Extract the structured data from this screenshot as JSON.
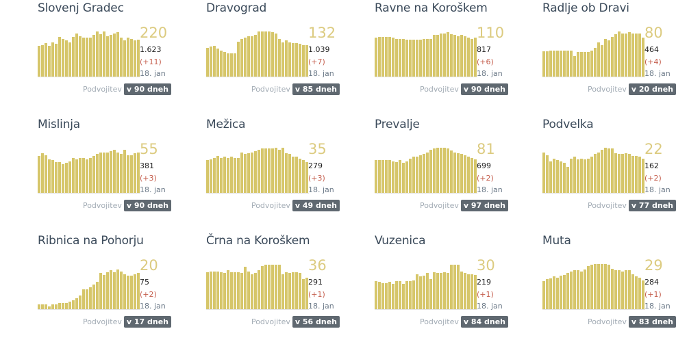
{
  "footer_label": "Podvojitev",
  "colors": {
    "bar": "#d6c66a",
    "badge": "#5f6870",
    "delta": "#c5604f"
  },
  "municipalities": [
    {
      "name": "Slovenj Gradec",
      "active": "220",
      "total": "1.623",
      "delta": "(+11)",
      "date": "18. jan",
      "doubling": "v 90 dneh",
      "bars": [
        0.68,
        0.7,
        0.74,
        0.68,
        0.76,
        0.72,
        0.88,
        0.84,
        0.8,
        0.76,
        0.88,
        0.96,
        0.9,
        0.86,
        0.86,
        0.86,
        0.92,
        1,
        0.94,
        1,
        0.9,
        0.92,
        0.96,
        0.99,
        0.86,
        0.8,
        0.86,
        0.84,
        0.8,
        0.82
      ]
    },
    {
      "name": "Dravograd",
      "active": "132",
      "total": "1.039",
      "delta": "(+7)",
      "date": "18. jan",
      "doubling": "v 85 dneh",
      "bars": [
        0.64,
        0.66,
        0.68,
        0.62,
        0.58,
        0.54,
        0.52,
        0.52,
        0.52,
        0.78,
        0.84,
        0.86,
        0.9,
        0.9,
        0.92,
        1,
        1,
        1,
        1,
        0.98,
        0.96,
        0.84,
        0.76,
        0.8,
        0.76,
        0.74,
        0.74,
        0.72,
        0.7,
        0.7
      ]
    },
    {
      "name": "Ravne na Koroškem",
      "active": "110",
      "total": "817",
      "delta": "(+6)",
      "date": "18. jan",
      "doubling": "v 90 dneh",
      "bars": [
        0.86,
        0.88,
        0.88,
        0.88,
        0.88,
        0.86,
        0.84,
        0.84,
        0.84,
        0.82,
        0.82,
        0.82,
        0.82,
        0.82,
        0.84,
        0.84,
        0.84,
        0.92,
        0.92,
        0.96,
        0.96,
        0.98,
        0.94,
        0.92,
        0.9,
        0.92,
        0.9,
        0.86,
        0.84,
        0.86
      ]
    },
    {
      "name": "Radlje ob Dravi",
      "active": "80",
      "total": "464",
      "delta": "(+4)",
      "date": "18. jan",
      "doubling": "v 20 dneh",
      "bars": [
        0.56,
        0.56,
        0.58,
        0.58,
        0.58,
        0.58,
        0.58,
        0.58,
        0.58,
        0.46,
        0.54,
        0.54,
        0.54,
        0.54,
        0.58,
        0.64,
        0.76,
        0.7,
        0.84,
        0.8,
        0.88,
        0.94,
        1,
        0.96,
        0.96,
        0.98,
        0.96,
        0.96,
        0.96,
        0.86
      ]
    },
    {
      "name": "Mislinja",
      "active": "55",
      "total": "381",
      "delta": "(+3)",
      "date": "18. jan",
      "doubling": "v 90 dneh",
      "bars": [
        0.82,
        0.88,
        0.84,
        0.74,
        0.72,
        0.68,
        0.68,
        0.64,
        0.66,
        0.7,
        0.78,
        0.74,
        0.78,
        0.78,
        0.74,
        0.78,
        0.82,
        0.86,
        0.9,
        0.9,
        0.9,
        0.92,
        0.96,
        0.9,
        0.86,
        0.96,
        0.84,
        0.84,
        0.88,
        0.9
      ]
    },
    {
      "name": "Mežica",
      "active": "35",
      "total": "279",
      "delta": "(+3)",
      "date": "18. jan",
      "doubling": "v 49 dneh",
      "bars": [
        0.72,
        0.74,
        0.78,
        0.82,
        0.78,
        0.8,
        0.78,
        0.8,
        0.78,
        0.78,
        0.9,
        0.86,
        0.88,
        0.9,
        0.92,
        0.96,
        0.98,
        0.98,
        0.98,
        0.98,
        1,
        0.96,
        1,
        0.88,
        0.86,
        0.8,
        0.8,
        0.76,
        0.72,
        0.68
      ]
    },
    {
      "name": "Prevalje",
      "active": "81",
      "total": "699",
      "delta": "(+2)",
      "date": "18. jan",
      "doubling": "v 97 dneh",
      "bars": [
        0.72,
        0.72,
        0.72,
        0.72,
        0.72,
        0.7,
        0.68,
        0.72,
        0.66,
        0.7,
        0.76,
        0.8,
        0.8,
        0.84,
        0.86,
        0.9,
        0.96,
        0.98,
        1,
        1,
        1,
        0.98,
        0.94,
        0.9,
        0.88,
        0.86,
        0.84,
        0.8,
        0.78,
        0.74
      ]
    },
    {
      "name": "Podvelka",
      "active": "22",
      "total": "162",
      "delta": "(+2)",
      "date": "18. jan",
      "doubling": "v 77 dneh",
      "bars": [
        0.9,
        0.84,
        0.7,
        0.76,
        0.72,
        0.7,
        0.66,
        0.58,
        0.76,
        0.8,
        0.74,
        0.76,
        0.74,
        0.76,
        0.8,
        0.86,
        0.9,
        0.96,
        1,
        0.98,
        0.98,
        0.88,
        0.86,
        0.86,
        0.88,
        0.86,
        0.82,
        0.82,
        0.8,
        0.76
      ]
    },
    {
      "name": "Ribnica na Pohorju",
      "active": "20",
      "total": "75",
      "delta": "(+2)",
      "date": "18. jan",
      "doubling": "v 17 dneh",
      "bars": [
        0.1,
        0.1,
        0.1,
        0.06,
        0.1,
        0.1,
        0.14,
        0.14,
        0.14,
        0.16,
        0.2,
        0.24,
        0.3,
        0.44,
        0.44,
        0.48,
        0.54,
        0.6,
        0.8,
        0.76,
        0.82,
        0.86,
        0.82,
        0.88,
        0.84,
        0.78,
        0.74,
        0.74,
        0.78,
        0.8
      ]
    },
    {
      "name": "Črna na Koroškem",
      "active": "36",
      "total": "291",
      "delta": "(+1)",
      "date": "18. jan",
      "doubling": "v 56 dneh",
      "bars": [
        0.82,
        0.84,
        0.84,
        0.84,
        0.82,
        0.8,
        0.86,
        0.82,
        0.82,
        0.82,
        0.8,
        0.94,
        0.84,
        0.78,
        0.8,
        0.86,
        0.96,
        0.98,
        0.98,
        0.98,
        0.98,
        0.98,
        0.78,
        0.82,
        0.8,
        0.82,
        0.82,
        0.8,
        0.66,
        0.7
      ]
    },
    {
      "name": "Vuzenica",
      "active": "30",
      "total": "219",
      "delta": "(+1)",
      "date": "18. jan",
      "doubling": "v 84 dneh",
      "bars": [
        0.62,
        0.6,
        0.58,
        0.58,
        0.6,
        0.56,
        0.62,
        0.62,
        0.56,
        0.62,
        0.62,
        0.64,
        0.78,
        0.72,
        0.74,
        0.8,
        0.66,
        0.82,
        0.8,
        0.8,
        0.82,
        0.8,
        0.98,
        0.98,
        0.98,
        0.84,
        0.8,
        0.78,
        0.78,
        0.76
      ]
    },
    {
      "name": "Muta",
      "active": "29",
      "total": "284",
      "delta": "(+1)",
      "date": "18. jan",
      "doubling": "v 83 dneh",
      "bars": [
        0.62,
        0.66,
        0.68,
        0.72,
        0.7,
        0.74,
        0.76,
        0.8,
        0.84,
        0.86,
        0.86,
        0.84,
        0.88,
        0.96,
        0.98,
        1,
        1,
        1,
        1,
        0.98,
        0.9,
        0.86,
        0.86,
        0.84,
        0.86,
        0.86,
        0.78,
        0.72,
        0.7,
        0.64
      ]
    }
  ]
}
